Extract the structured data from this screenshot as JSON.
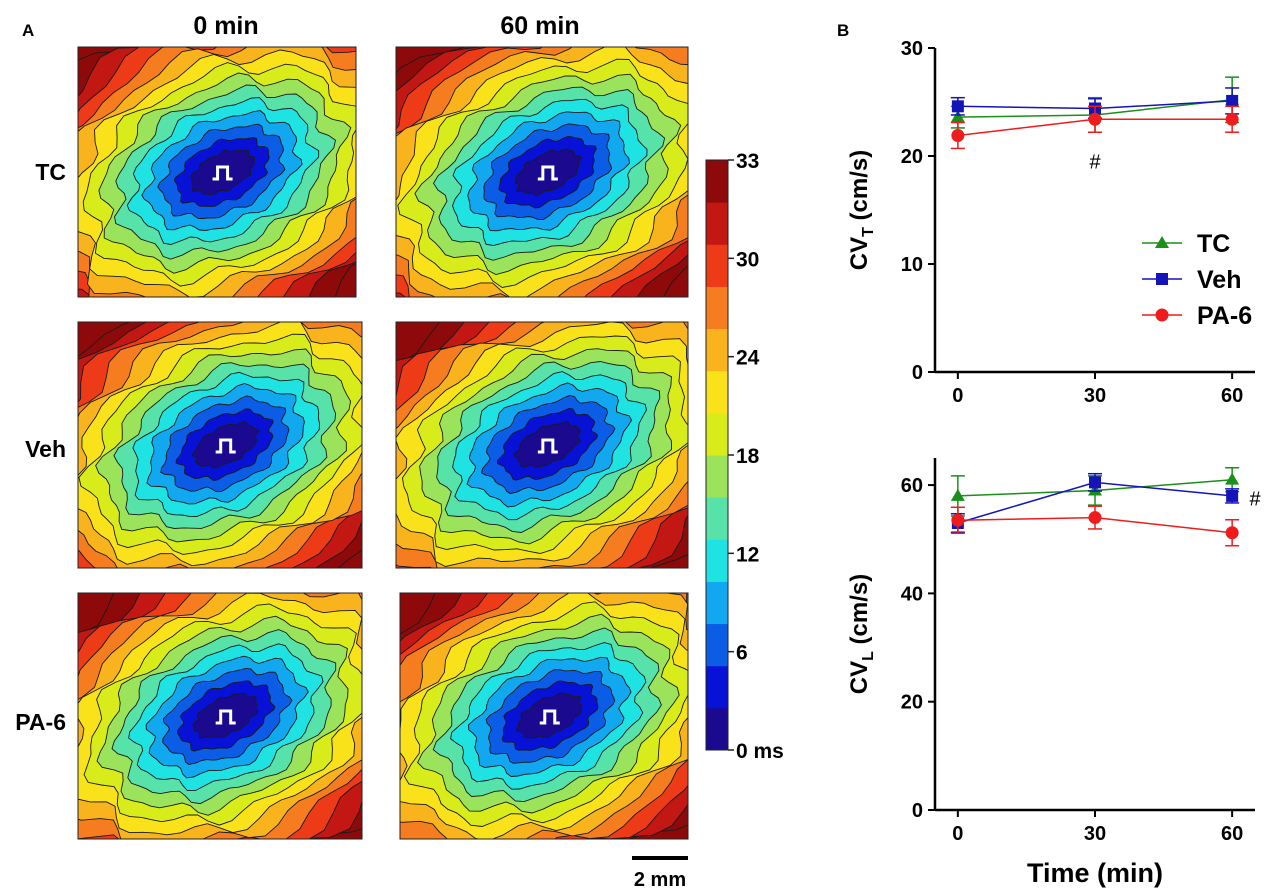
{
  "panel_a": {
    "label": "A",
    "columns": [
      "0 min",
      "60 min"
    ],
    "rows": [
      "TC",
      "Veh",
      "PA-6"
    ],
    "colorbar": {
      "ticks": [
        "33",
        "30",
        "24",
        "18",
        "12",
        "6",
        "0 ms"
      ],
      "colors": [
        "#1b0a8f",
        "#0712d6",
        "#0b5de6",
        "#12a8f0",
        "#1fe3e3",
        "#56e2a8",
        "#9be35b",
        "#d8ec1b",
        "#f9e21a",
        "#f9b31c",
        "#f57d1f",
        "#ee3b17",
        "#c21712",
        "#8e0a0a"
      ]
    },
    "scale_bar": "2 mm"
  },
  "panel_b": {
    "label": "B"
  },
  "chart_data": [
    {
      "type": "line",
      "xlabel": "",
      "ylabel": "CV_T (cm/s)",
      "ylabel_main": "CV",
      "ylabel_sub": "T",
      "ylabel_units": " (cm/s)",
      "x": [
        0,
        30,
        60
      ],
      "xticks": [
        "0",
        "30",
        "60"
      ],
      "xlim": [
        -5,
        65
      ],
      "ylim": [
        0,
        30
      ],
      "yticks": [
        "0",
        "10",
        "20",
        "30"
      ],
      "series": [
        {
          "name": "TC",
          "color": "#1a8f1a",
          "marker": "triangle",
          "values": [
            23.6,
            23.8,
            25.2
          ],
          "errors": [
            1.0,
            1.6,
            2.1
          ]
        },
        {
          "name": "Veh",
          "color": "#1414b8",
          "marker": "square",
          "values": [
            24.6,
            24.4,
            25.1
          ],
          "errors": [
            0.8,
            0.9,
            1.2
          ]
        },
        {
          "name": "PA-6",
          "color": "#ee1c1c",
          "marker": "circle",
          "values": [
            21.9,
            23.4,
            23.4
          ],
          "errors": [
            1.2,
            1.2,
            1.2
          ]
        }
      ],
      "annotations": [
        {
          "text": "#",
          "x": 30,
          "y": 19.5
        }
      ],
      "legend": "right"
    },
    {
      "type": "line",
      "xlabel": "Time (min)",
      "ylabel": "CV_L (cm/s)",
      "ylabel_main": "CV",
      "ylabel_sub": "L",
      "ylabel_units": " (cm/s)",
      "x": [
        0,
        30,
        60
      ],
      "xticks": [
        "0",
        "30",
        "60"
      ],
      "xlim": [
        -5,
        65
      ],
      "ylim": [
        0,
        65
      ],
      "yticks": [
        "0",
        "20",
        "40",
        "60"
      ],
      "series": [
        {
          "name": "TC",
          "color": "#1a8f1a",
          "marker": "triangle",
          "values": [
            58,
            59,
            61
          ],
          "errors": [
            3.7,
            2.7,
            2.2
          ]
        },
        {
          "name": "Veh",
          "color": "#1414b8",
          "marker": "square",
          "values": [
            53,
            60.5,
            58
          ],
          "errors": [
            1.7,
            1.6,
            1.3
          ]
        },
        {
          "name": "PA-6",
          "color": "#ee1c1c",
          "marker": "circle",
          "values": [
            53.5,
            54,
            51.2
          ],
          "errors": [
            2.4,
            2.1,
            2.4
          ]
        }
      ],
      "annotations": [
        {
          "text": "#",
          "x": 65,
          "y": 57.5
        }
      ]
    }
  ]
}
